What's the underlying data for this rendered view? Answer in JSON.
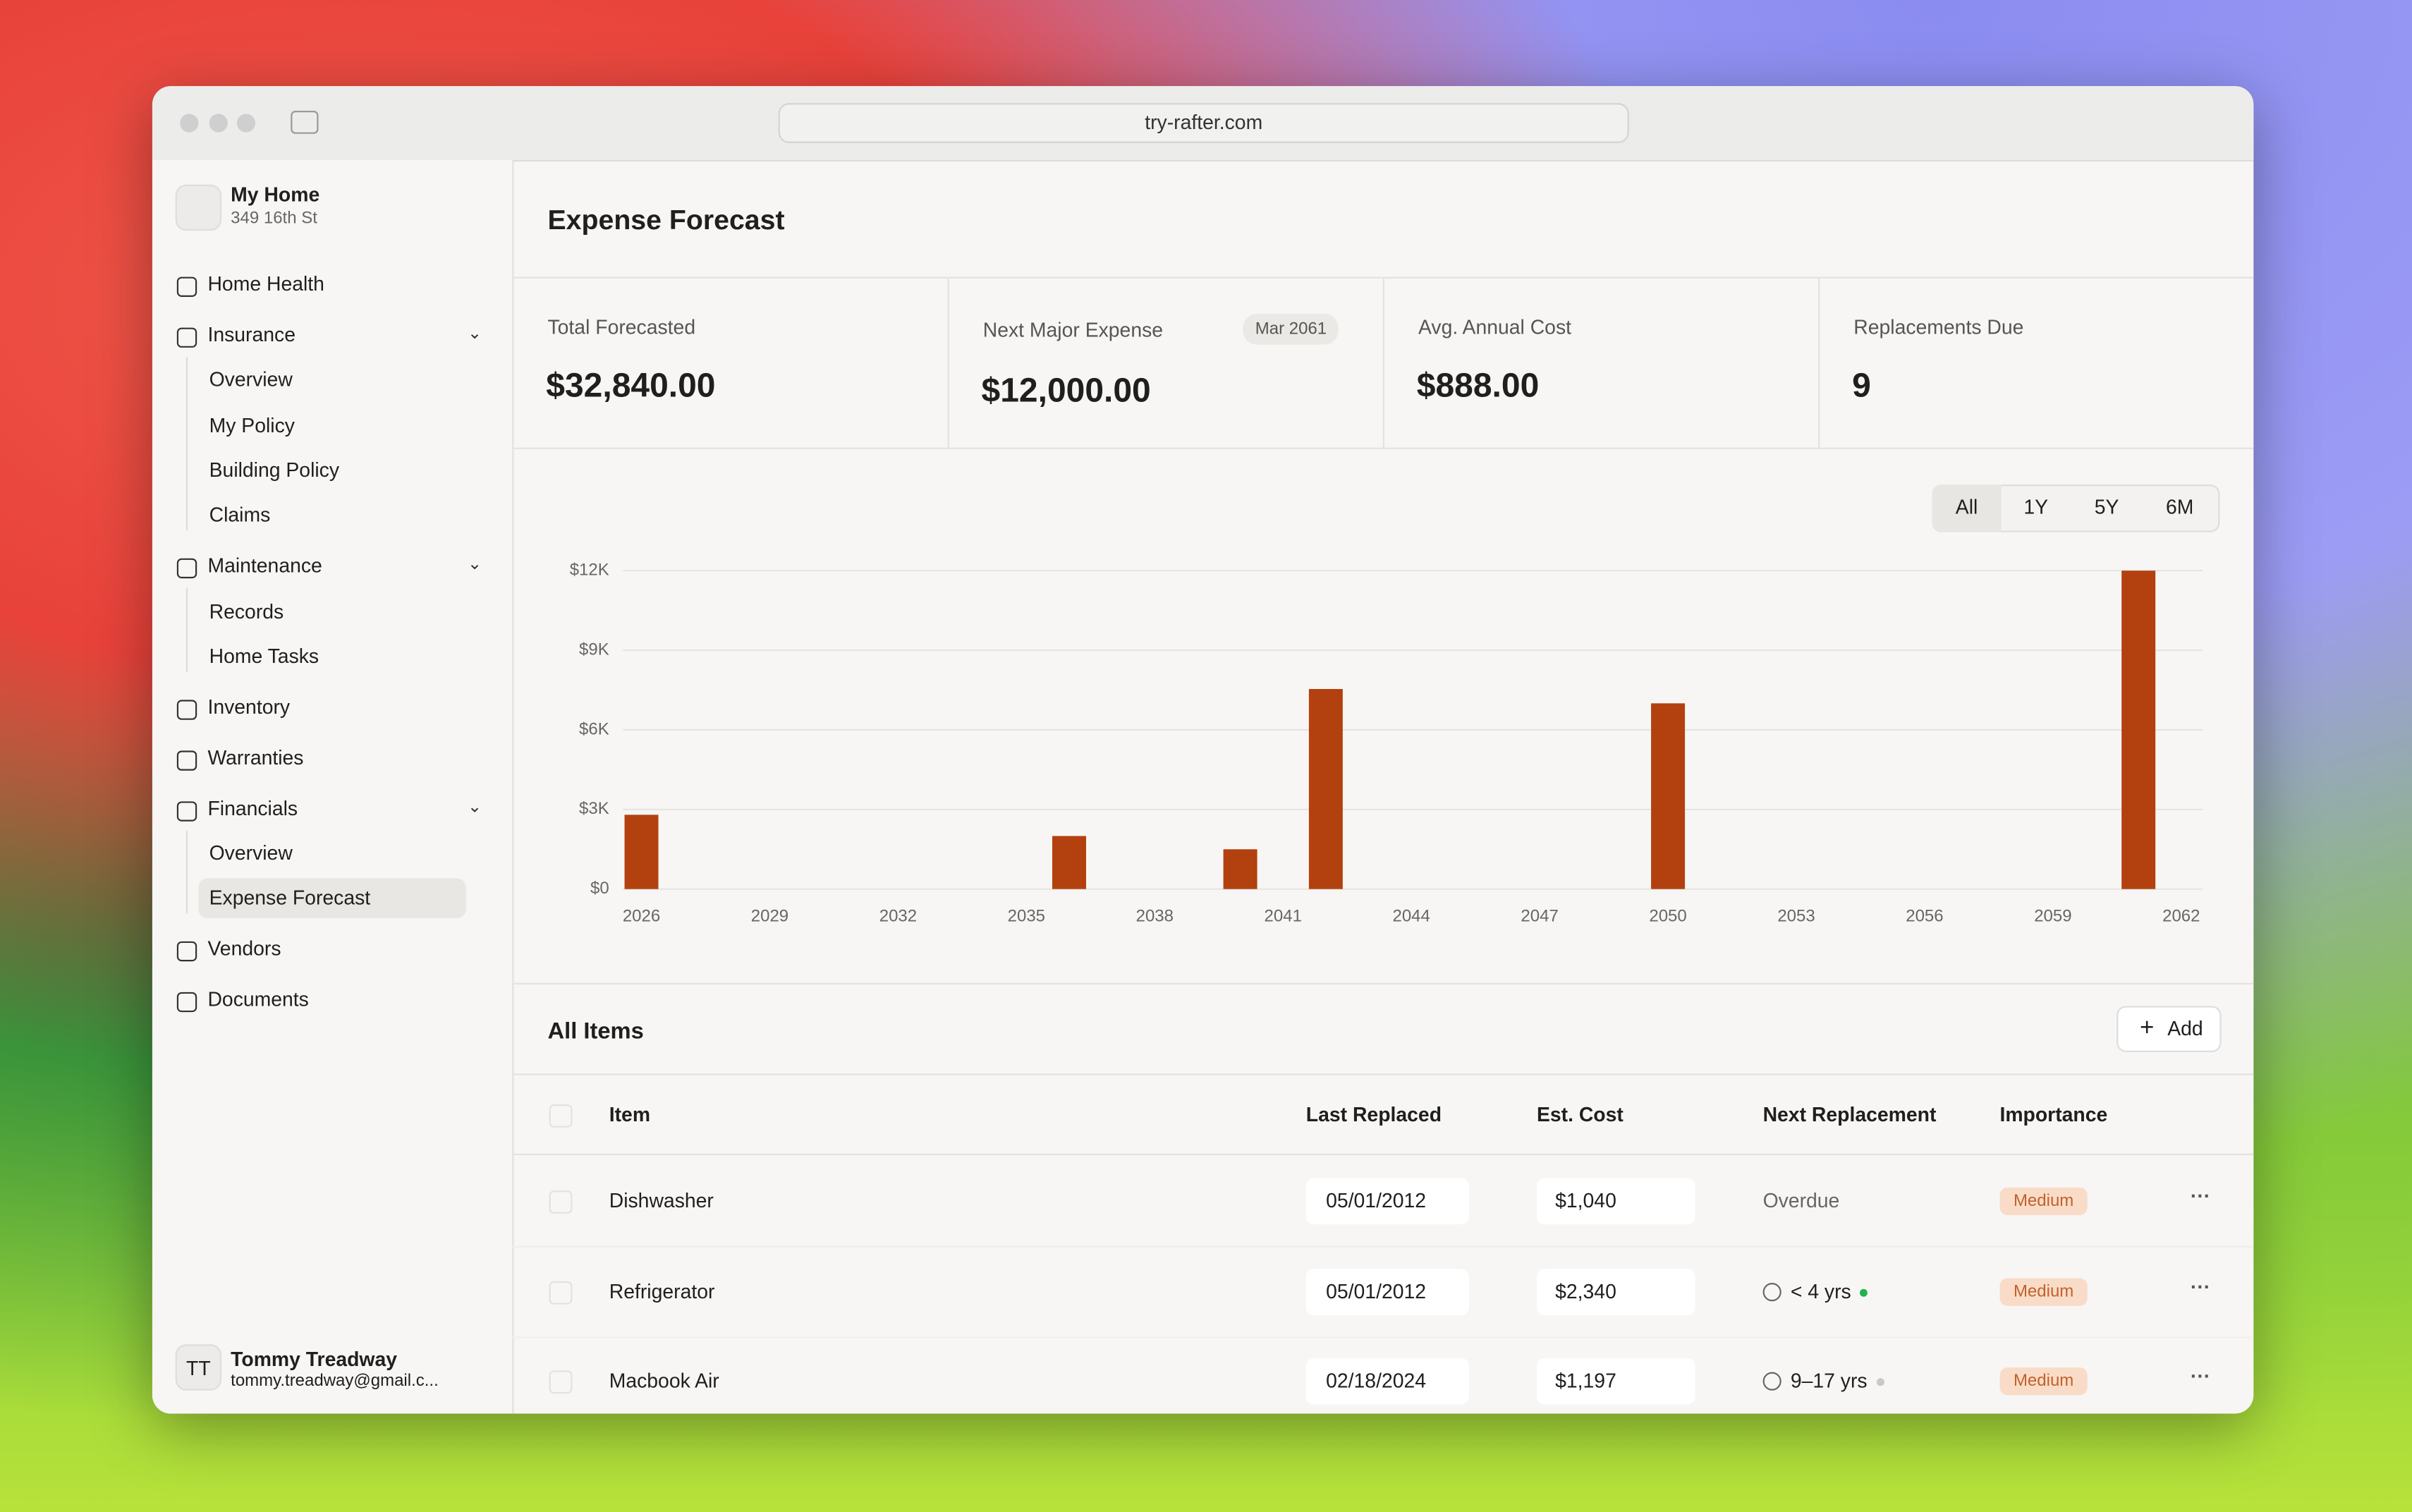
{
  "browser": {
    "url": "try-rafter.com"
  },
  "sidebar": {
    "home_name": "My Home",
    "home_address": "349 16th St",
    "nav": [
      {
        "label": "Home Health"
      },
      {
        "label": "Insurance",
        "children": [
          "Overview",
          "My Policy",
          "Building Policy",
          "Claims"
        ]
      },
      {
        "label": "Maintenance",
        "children": [
          "Records",
          "Home Tasks"
        ]
      },
      {
        "label": "Inventory"
      },
      {
        "label": "Warranties"
      },
      {
        "label": "Financials",
        "children": [
          "Overview",
          "Expense Forecast"
        ]
      },
      {
        "label": "Vendors"
      },
      {
        "label": "Documents"
      }
    ],
    "user": {
      "initials": "TT",
      "name": "Tommy Treadway",
      "email": "tommy.treadway@gmail.c..."
    }
  },
  "page": {
    "title": "Expense Forecast"
  },
  "stats": [
    {
      "label": "Total Forecasted",
      "value": "$32,840.00"
    },
    {
      "label": "Next Major Expense",
      "value": "$12,000.00",
      "badge": "Mar 2061"
    },
    {
      "label": "Avg. Annual Cost",
      "value": "$888.00"
    },
    {
      "label": "Replacements Due",
      "value": 9
    }
  ],
  "ranges": [
    "All",
    "1Y",
    "5Y",
    "6M"
  ],
  "chart": {
    "type": "bar",
    "x": [
      2026,
      2036,
      2040,
      2042,
      2050,
      2061
    ],
    "values": [
      2800,
      2000,
      1500,
      7540,
      7000,
      12000
    ],
    "color": "#b2410f",
    "xlim": [
      2026,
      2062
    ],
    "xticks": [
      2026,
      2029,
      2032,
      2035,
      2038,
      2041,
      2044,
      2047,
      2050,
      2053,
      2056,
      2059,
      2062
    ],
    "ylim": [
      0,
      12000
    ],
    "yticks": [
      {
        "value": 0,
        "label": "$0"
      },
      {
        "value": 3000,
        "label": "$3K"
      },
      {
        "value": 6000,
        "label": "$6K"
      },
      {
        "value": 9000,
        "label": "$9K"
      },
      {
        "value": 12000,
        "label": "$12K"
      }
    ],
    "grid": true
  },
  "table": {
    "title": "All Items",
    "add": "Add",
    "columns": [
      "Item",
      "Last Replaced",
      "Est. Cost",
      "Next Replacement",
      "Importance"
    ],
    "rows": [
      {
        "item": "Dishwasher",
        "last_replaced": "05/01/2012",
        "est_cost": "$1,040",
        "next_replacement": "Overdue",
        "importance": "Medium"
      },
      {
        "item": "Refrigerator",
        "last_replaced": "05/01/2012",
        "est_cost": "$2,340",
        "next_replacement": "< 4 yrs",
        "importance": "Medium"
      },
      {
        "item": "Macbook Air",
        "last_replaced": "02/18/2024",
        "est_cost": "$1,197",
        "next_replacement": "9–17 yrs",
        "importance": "Medium"
      }
    ]
  }
}
